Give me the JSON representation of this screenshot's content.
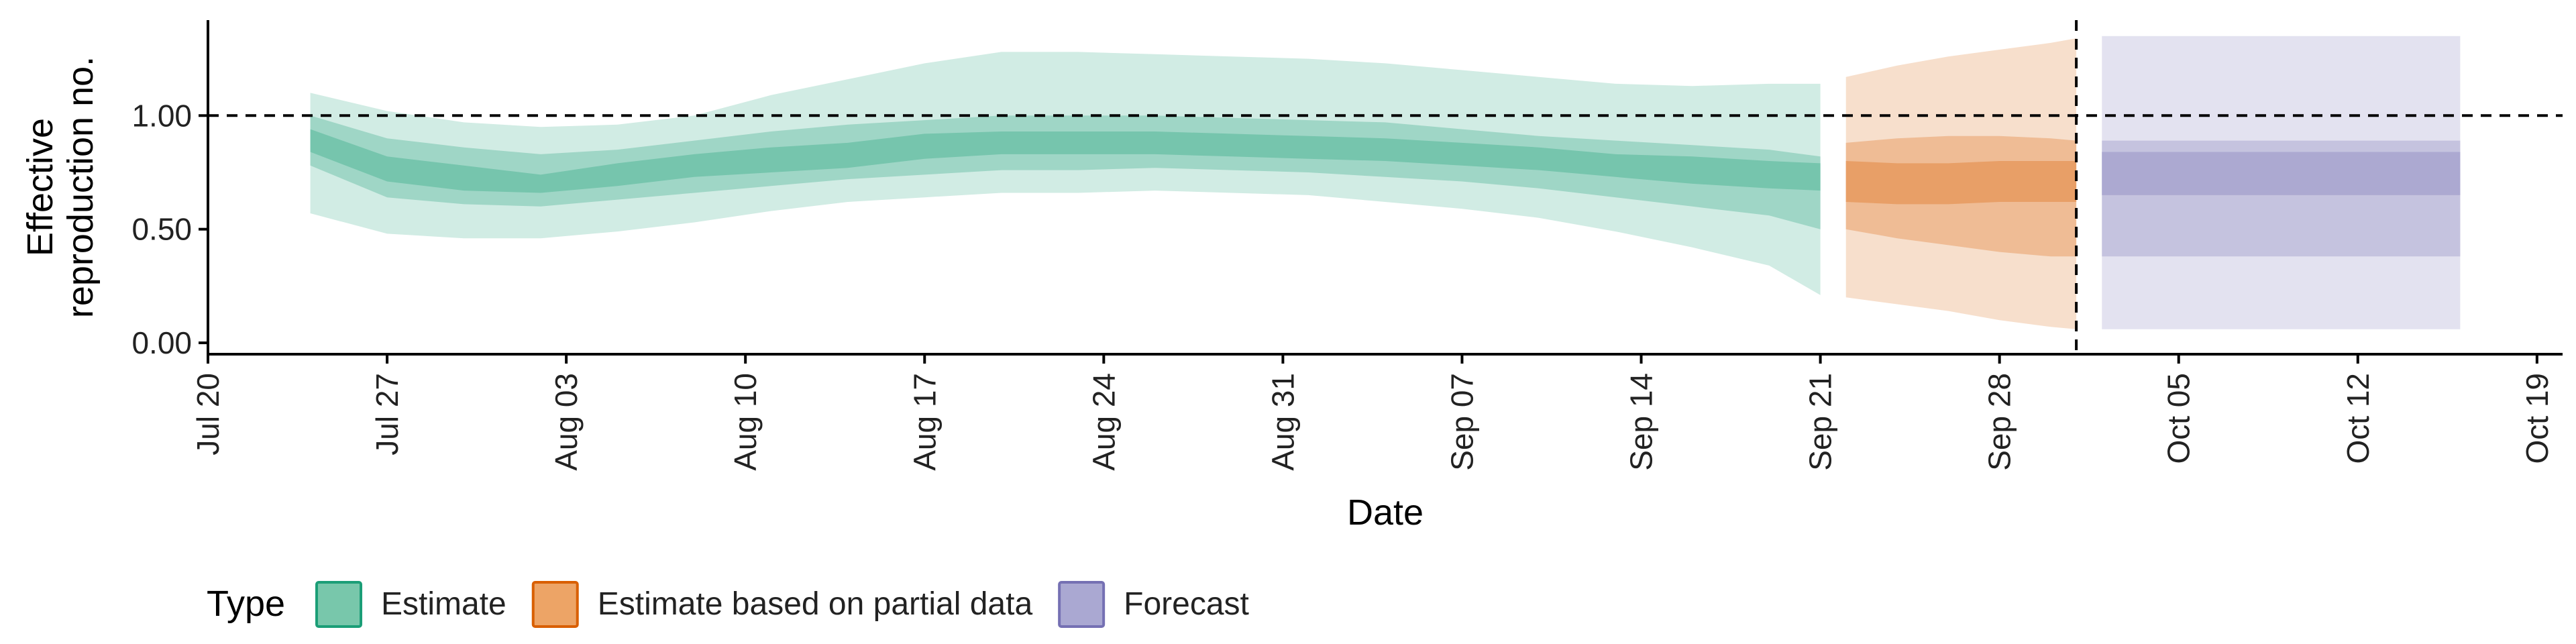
{
  "chart_data": {
    "type": "area",
    "title": "",
    "xlabel": "Date",
    "ylabel": "Effective\nreproduction no.",
    "ylim": [
      -0.05,
      1.42
    ],
    "y_ticks": [
      "0.00",
      "0.50",
      "1.00"
    ],
    "y_tick_values": [
      0,
      0.5,
      1.0
    ],
    "x_ticks": [
      "Jul 20",
      "Jul 27",
      "Aug 03",
      "Aug 10",
      "Aug 17",
      "Aug 24",
      "Aug 31",
      "Sep 07",
      "Sep 14",
      "Sep 21",
      "Sep 28",
      "Oct 05",
      "Oct 12",
      "Oct 19"
    ],
    "x_tick_dates": [
      "2020-07-20",
      "2020-07-27",
      "2020-08-03",
      "2020-08-10",
      "2020-08-17",
      "2020-08-24",
      "2020-08-31",
      "2020-09-07",
      "2020-09-14",
      "2020-09-21",
      "2020-09-28",
      "2020-10-05",
      "2020-10-12",
      "2020-10-19"
    ],
    "xlim": [
      "2020-07-20",
      "2020-10-20"
    ],
    "reference_line": {
      "y": 1.0,
      "style": "dashed"
    },
    "forecast_start_line": {
      "date": "2020-10-01",
      "style": "dashed"
    },
    "legend": {
      "title": "Type",
      "position": "bottom",
      "entries": [
        {
          "label": "Estimate",
          "fill": "#78c7ab",
          "stroke": "#1b9e77"
        },
        {
          "label": "Estimate based on partial data",
          "fill": "#eda466",
          "stroke": "#d95f02"
        },
        {
          "label": "Forecast",
          "fill": "#aaa8d2",
          "stroke": "#7570b3"
        }
      ]
    },
    "bands": {
      "outer": "90% credible interval",
      "middle": "50% credible interval",
      "inner": "20% credible interval"
    },
    "series": [
      {
        "name": "Estimate",
        "color": "#1b9e77",
        "dates": [
          "2020-07-24",
          "2020-07-27",
          "2020-07-30",
          "2020-08-02",
          "2020-08-05",
          "2020-08-08",
          "2020-08-11",
          "2020-08-14",
          "2020-08-17",
          "2020-08-20",
          "2020-08-23",
          "2020-08-26",
          "2020-08-29",
          "2020-09-01",
          "2020-09-04",
          "2020-09-07",
          "2020-09-10",
          "2020-09-13",
          "2020-09-16",
          "2020-09-19",
          "2020-09-21"
        ],
        "lower_90": [
          0.57,
          0.48,
          0.46,
          0.46,
          0.49,
          0.53,
          0.58,
          0.62,
          0.64,
          0.66,
          0.66,
          0.67,
          0.66,
          0.65,
          0.62,
          0.59,
          0.55,
          0.49,
          0.42,
          0.34,
          0.21
        ],
        "upper_90": [
          1.1,
          1.02,
          0.97,
          0.95,
          0.96,
          1.0,
          1.09,
          1.16,
          1.23,
          1.28,
          1.28,
          1.27,
          1.26,
          1.25,
          1.23,
          1.2,
          1.17,
          1.14,
          1.13,
          1.14,
          1.14
        ],
        "lower_50": [
          0.78,
          0.64,
          0.61,
          0.6,
          0.63,
          0.66,
          0.69,
          0.72,
          0.74,
          0.76,
          0.76,
          0.77,
          0.76,
          0.75,
          0.73,
          0.71,
          0.68,
          0.64,
          0.6,
          0.56,
          0.5
        ],
        "upper_50": [
          1.0,
          0.9,
          0.86,
          0.83,
          0.85,
          0.89,
          0.93,
          0.96,
          0.98,
          1.0,
          1.0,
          1.0,
          0.99,
          0.98,
          0.97,
          0.94,
          0.91,
          0.89,
          0.87,
          0.85,
          0.82
        ],
        "lower_20": [
          0.84,
          0.71,
          0.67,
          0.66,
          0.69,
          0.73,
          0.75,
          0.77,
          0.81,
          0.83,
          0.83,
          0.83,
          0.82,
          0.81,
          0.8,
          0.78,
          0.76,
          0.73,
          0.7,
          0.68,
          0.67
        ],
        "upper_20": [
          0.94,
          0.82,
          0.78,
          0.74,
          0.79,
          0.83,
          0.86,
          0.88,
          0.92,
          0.93,
          0.93,
          0.93,
          0.92,
          0.91,
          0.9,
          0.88,
          0.86,
          0.83,
          0.82,
          0.8,
          0.79
        ]
      },
      {
        "name": "Estimate based on partial data",
        "color": "#d95f02",
        "dates": [
          "2020-09-22",
          "2020-09-24",
          "2020-09-26",
          "2020-09-28",
          "2020-09-30",
          "2020-10-01"
        ],
        "lower_90": [
          0.2,
          0.17,
          0.14,
          0.1,
          0.07,
          0.06
        ],
        "upper_90": [
          1.17,
          1.22,
          1.26,
          1.29,
          1.32,
          1.34
        ],
        "lower_50": [
          0.5,
          0.46,
          0.43,
          0.4,
          0.38,
          0.38
        ],
        "upper_50": [
          0.88,
          0.9,
          0.91,
          0.91,
          0.9,
          0.89
        ],
        "lower_20": [
          0.62,
          0.61,
          0.61,
          0.62,
          0.62,
          0.62
        ],
        "upper_20": [
          0.8,
          0.79,
          0.79,
          0.8,
          0.8,
          0.8
        ]
      },
      {
        "name": "Forecast",
        "color": "#7570b3",
        "dates": [
          "2020-10-02",
          "2020-10-16"
        ],
        "lower_90": [
          0.06,
          0.06
        ],
        "upper_90": [
          1.35,
          1.35
        ],
        "lower_50": [
          0.38,
          0.38
        ],
        "upper_50": [
          0.89,
          0.89
        ],
        "lower_20": [
          0.65,
          0.65
        ],
        "upper_20": [
          0.84,
          0.84
        ]
      }
    ]
  }
}
